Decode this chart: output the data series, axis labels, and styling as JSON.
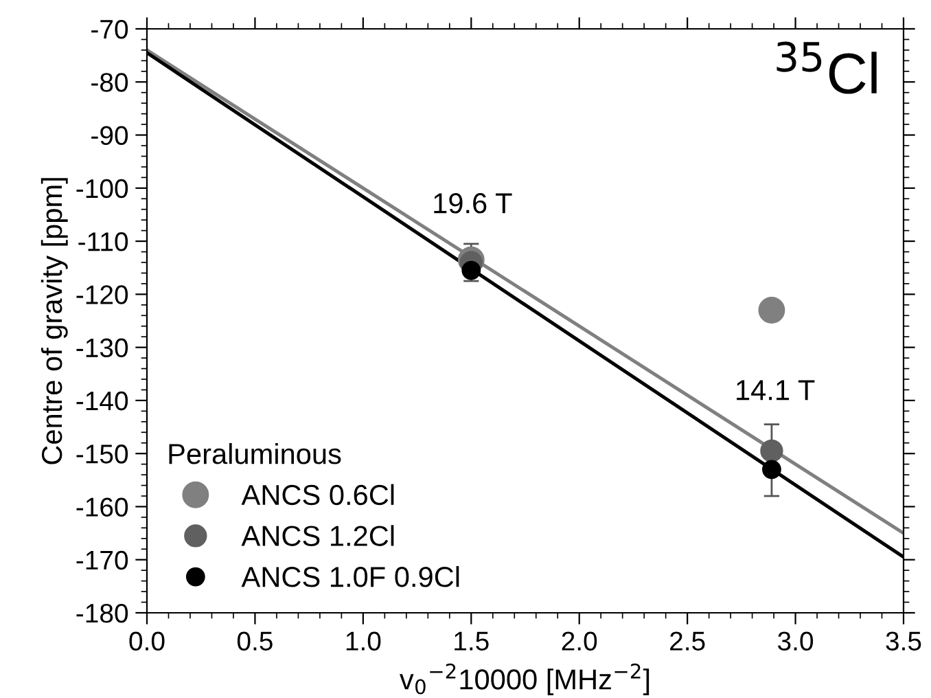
{
  "chart_data": {
    "type": "scatter",
    "xlabel": "v$_{0}$$^{−2}$10000 [MHz$^{−2}$]",
    "ylabel": "Centre of gravity [ppm]",
    "legend_title": "Peraluminous",
    "legend": "bottom left",
    "grid": false,
    "xlim": [
      0,
      3.5
    ],
    "xticks": [
      {
        "value": 0,
        "label": "0.0"
      },
      0.5,
      {
        "value": 1,
        "label": "1.0"
      },
      1.5,
      {
        "value": 2,
        "label": "2.0"
      },
      2.5,
      {
        "value": 3,
        "label": "3.0"
      },
      3.5
    ],
    "ylim": [
      -180,
      -70
    ],
    "yticks": [
      -180,
      -170,
      -160,
      -150,
      -140,
      -130,
      -120,
      -110,
      -100,
      -90,
      -80,
      -70
    ],
    "annotations": [
      "$^{35}$Cl",
      "19.6 T",
      "14.1 T"
    ],
    "series": [
      {
        "type": "line",
        "x": [
          0,
          3.5
        ],
        "values": [
          -74,
          -165
        ],
        "color": "#808080",
        "marker": "none"
      },
      {
        "type": "line",
        "x": [
          0,
          3.5
        ],
        "values": [
          -74.5,
          -169.5
        ],
        "color": "#000000",
        "marker": "none"
      },
      {
        "name": "ANCS 0.6Cl",
        "x": [
          1.5,
          2.89
        ],
        "values": [
          -113.5,
          -123
        ],
        "color": "#808080",
        "marker": "circle"
      },
      {
        "name": "ANCS 1.2Cl",
        "x": [
          1.5,
          2.89
        ],
        "values": [
          -114,
          -149.5
        ],
        "errors": [
          3.5,
          [
            -158,
            -144.5
          ]
        ],
        "color": "#606060",
        "marker": "circle"
      },
      {
        "name": "ANCS 1.0F 0.9Cl",
        "x": [
          1.5,
          2.89
        ],
        "values": [
          -115.5,
          -153
        ],
        "color": "#000000",
        "marker": "circle"
      }
    ]
  }
}
